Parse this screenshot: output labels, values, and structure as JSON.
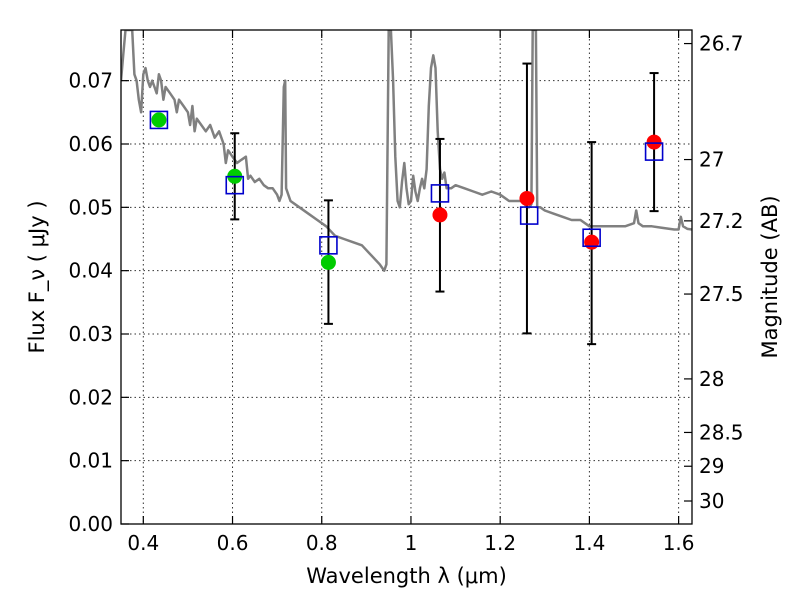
{
  "chart_data": {
    "type": "scatter",
    "xlabel": "Wavelength  λ (μm)",
    "ylabel": "Flux  F_ν  ( μJy )",
    "y2label": "Magnitude (AB)",
    "xlim": [
      0.35,
      1.63
    ],
    "ylim": [
      0.0,
      0.078
    ],
    "grid": true,
    "x_ticks": [
      {
        "value": 0.4,
        "label": "0.4"
      },
      {
        "value": 0.6,
        "label": "0.6"
      },
      {
        "value": 0.8,
        "label": "0.8"
      },
      {
        "value": 1.0,
        "label": "1"
      },
      {
        "value": 1.2,
        "label": "1.2"
      },
      {
        "value": 1.4,
        "label": "1.4"
      },
      {
        "value": 1.6,
        "label": "1.6"
      }
    ],
    "y_ticks": [
      {
        "value": 0.0,
        "label": "0.00"
      },
      {
        "value": 0.01,
        "label": "0.01"
      },
      {
        "value": 0.02,
        "label": "0.02"
      },
      {
        "value": 0.03,
        "label": "0.03"
      },
      {
        "value": 0.04,
        "label": "0.04"
      },
      {
        "value": 0.05,
        "label": "0.05"
      },
      {
        "value": 0.06,
        "label": "0.06"
      },
      {
        "value": 0.07,
        "label": "0.07"
      }
    ],
    "y2_ticks": [
      {
        "value": 26.7,
        "label": "26.7"
      },
      {
        "value": 27.0,
        "label": "27"
      },
      {
        "value": 27.2,
        "label": "27.2"
      },
      {
        "value": 27.5,
        "label": "27.5"
      },
      {
        "value": 28.0,
        "label": "28"
      },
      {
        "value": 28.5,
        "label": "28.5"
      },
      {
        "value": 29.0,
        "label": "29"
      },
      {
        "value": 30.0,
        "label": "30"
      }
    ],
    "series": [
      {
        "kind": "line",
        "color": "#808080",
        "points": [
          [
            0.35,
            0.07
          ],
          [
            0.355,
            0.074
          ],
          [
            0.36,
            0.078
          ],
          [
            0.365,
            0.078
          ],
          [
            0.37,
            0.078
          ],
          [
            0.375,
            0.078
          ],
          [
            0.38,
            0.071
          ],
          [
            0.385,
            0.07
          ],
          [
            0.39,
            0.067
          ],
          [
            0.395,
            0.065
          ],
          [
            0.4,
            0.071
          ],
          [
            0.405,
            0.072
          ],
          [
            0.41,
            0.07
          ],
          [
            0.415,
            0.069
          ],
          [
            0.42,
            0.07
          ],
          [
            0.425,
            0.069
          ],
          [
            0.43,
            0.068
          ],
          [
            0.435,
            0.071
          ],
          [
            0.44,
            0.07
          ],
          [
            0.445,
            0.067
          ],
          [
            0.45,
            0.069
          ],
          [
            0.46,
            0.068
          ],
          [
            0.47,
            0.067
          ],
          [
            0.475,
            0.065
          ],
          [
            0.48,
            0.067
          ],
          [
            0.49,
            0.066
          ],
          [
            0.5,
            0.065
          ],
          [
            0.505,
            0.063
          ],
          [
            0.51,
            0.066
          ],
          [
            0.515,
            0.062
          ],
          [
            0.52,
            0.064
          ],
          [
            0.53,
            0.063
          ],
          [
            0.54,
            0.062
          ],
          [
            0.55,
            0.063
          ],
          [
            0.56,
            0.061
          ],
          [
            0.57,
            0.062
          ],
          [
            0.58,
            0.06
          ],
          [
            0.585,
            0.057
          ],
          [
            0.59,
            0.059
          ],
          [
            0.6,
            0.058
          ],
          [
            0.61,
            0.057
          ],
          [
            0.62,
            0.0575
          ],
          [
            0.63,
            0.058
          ],
          [
            0.635,
            0.0545
          ],
          [
            0.64,
            0.055
          ],
          [
            0.65,
            0.054
          ],
          [
            0.66,
            0.0545
          ],
          [
            0.67,
            0.0535
          ],
          [
            0.68,
            0.053
          ],
          [
            0.69,
            0.053
          ],
          [
            0.7,
            0.052
          ],
          [
            0.705,
            0.051
          ],
          [
            0.71,
            0.052
          ],
          [
            0.715,
            0.069
          ],
          [
            0.718,
            0.07
          ],
          [
            0.72,
            0.053
          ],
          [
            0.73,
            0.051
          ],
          [
            0.74,
            0.0505
          ],
          [
            0.75,
            0.05
          ],
          [
            0.77,
            0.049
          ],
          [
            0.79,
            0.048
          ],
          [
            0.81,
            0.047
          ],
          [
            0.83,
            0.0455
          ],
          [
            0.85,
            0.045
          ],
          [
            0.87,
            0.0445
          ],
          [
            0.89,
            0.044
          ],
          [
            0.91,
            0.0425
          ],
          [
            0.93,
            0.041
          ],
          [
            0.94,
            0.04
          ],
          [
            0.945,
            0.041
          ],
          [
            0.95,
            0.078
          ],
          [
            0.955,
            0.078
          ],
          [
            0.96,
            0.07
          ],
          [
            0.965,
            0.058
          ],
          [
            0.97,
            0.051
          ],
          [
            0.975,
            0.05
          ],
          [
            0.98,
            0.054
          ],
          [
            0.985,
            0.057
          ],
          [
            0.99,
            0.053
          ],
          [
            0.995,
            0.0505
          ],
          [
            1.0,
            0.051
          ],
          [
            1.005,
            0.055
          ],
          [
            1.01,
            0.0525
          ],
          [
            1.015,
            0.051
          ],
          [
            1.02,
            0.053
          ],
          [
            1.025,
            0.0545
          ],
          [
            1.03,
            0.053
          ],
          [
            1.035,
            0.056
          ],
          [
            1.04,
            0.066
          ],
          [
            1.045,
            0.072
          ],
          [
            1.05,
            0.074
          ],
          [
            1.055,
            0.072
          ],
          [
            1.06,
            0.062
          ],
          [
            1.065,
            0.056
          ],
          [
            1.07,
            0.0545
          ],
          [
            1.075,
            0.0555
          ],
          [
            1.08,
            0.053
          ],
          [
            1.09,
            0.053
          ],
          [
            1.1,
            0.0535
          ],
          [
            1.12,
            0.053
          ],
          [
            1.14,
            0.0525
          ],
          [
            1.16,
            0.052
          ],
          [
            1.18,
            0.0525
          ],
          [
            1.2,
            0.052
          ],
          [
            1.22,
            0.051
          ],
          [
            1.24,
            0.051
          ],
          [
            1.25,
            0.051
          ],
          [
            1.26,
            0.05
          ],
          [
            1.265,
            0.05
          ],
          [
            1.27,
            0.0505
          ],
          [
            1.273,
            0.078
          ],
          [
            1.277,
            0.078
          ],
          [
            1.28,
            0.078
          ],
          [
            1.283,
            0.05
          ],
          [
            1.29,
            0.05
          ],
          [
            1.3,
            0.0495
          ],
          [
            1.32,
            0.049
          ],
          [
            1.34,
            0.0485
          ],
          [
            1.36,
            0.048
          ],
          [
            1.38,
            0.048
          ],
          [
            1.4,
            0.047
          ],
          [
            1.42,
            0.047
          ],
          [
            1.44,
            0.047
          ],
          [
            1.46,
            0.047
          ],
          [
            1.48,
            0.047
          ],
          [
            1.5,
            0.0475
          ],
          [
            1.505,
            0.0495
          ],
          [
            1.51,
            0.0475
          ],
          [
            1.52,
            0.047
          ],
          [
            1.54,
            0.047
          ],
          [
            1.56,
            0.0468
          ],
          [
            1.58,
            0.0466
          ],
          [
            1.59,
            0.0465
          ],
          [
            1.6,
            0.0465
          ],
          [
            1.605,
            0.0485
          ],
          [
            1.61,
            0.047
          ],
          [
            1.62,
            0.0466
          ],
          [
            1.63,
            0.0465
          ]
        ]
      },
      {
        "kind": "model_photometry",
        "marker": "open-square",
        "color": "#0000cc",
        "x": [
          0.435,
          0.605,
          0.815,
          1.065,
          1.265,
          1.405,
          1.545
        ],
        "y": [
          0.0638,
          0.0535,
          0.044,
          0.0522,
          0.0487,
          0.0452,
          0.0588
        ]
      },
      {
        "kind": "observed_hst",
        "marker": "filled-circle",
        "color": "#00cc00",
        "x": [
          0.435,
          0.605,
          0.815
        ],
        "y": [
          0.0638,
          0.0549,
          0.0413
        ]
      },
      {
        "kind": "observed_ir",
        "marker": "filled-circle",
        "color": "#ff0000",
        "x": [
          1.065,
          1.26,
          1.405,
          1.545
        ],
        "y": [
          0.0488,
          0.0514,
          0.0445,
          0.0603
        ]
      },
      {
        "kind": "errorbars",
        "color": "#000000",
        "bars": [
          {
            "x": 0.605,
            "low": 0.0481,
            "high": 0.0617
          },
          {
            "x": 0.815,
            "low": 0.0316,
            "high": 0.0511
          },
          {
            "x": 1.065,
            "low": 0.0367,
            "high": 0.0608
          },
          {
            "x": 1.26,
            "low": 0.0301,
            "high": 0.0727
          },
          {
            "x": 1.405,
            "low": 0.0284,
            "high": 0.0603
          },
          {
            "x": 1.545,
            "low": 0.0494,
            "high": 0.0712
          }
        ]
      }
    ]
  }
}
